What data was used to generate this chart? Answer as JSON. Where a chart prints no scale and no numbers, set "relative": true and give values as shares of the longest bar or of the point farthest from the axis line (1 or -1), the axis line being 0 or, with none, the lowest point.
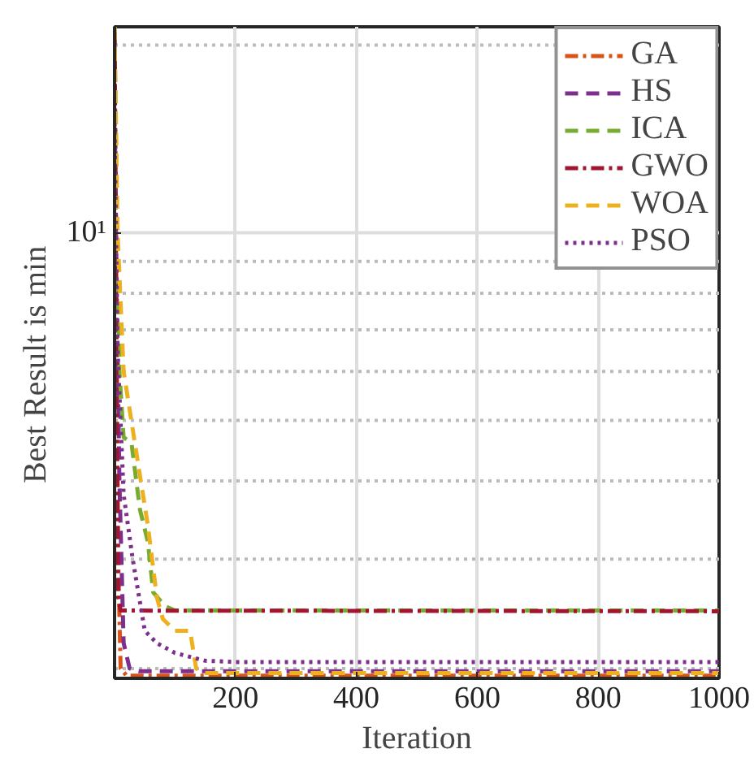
{
  "chart_data": {
    "type": "line",
    "xlabel": "Iteration",
    "ylabel": "Best  Result  is  min",
    "relative": true,
    "annotations": [
      "10¹"
    ],
    "grid": "x",
    "legend": "top right",
    "xlim": [
      0,
      1000
    ],
    "xticks": [
      200,
      400,
      600,
      800,
      1000
    ],
    "ref_lines": [
      {
        "axis": "y",
        "value": 0.684,
        "label": null,
        "color": "#dddddd",
        "line_style": "solid"
      },
      {
        "axis": "y",
        "value": 0.015,
        "label": null,
        "color": "#bbbbbb",
        "line_style": "dotted"
      },
      {
        "axis": "y",
        "value": 0.183,
        "label": null,
        "color": "#bbbbbb",
        "line_style": "dotted"
      },
      {
        "axis": "y",
        "value": 0.303,
        "label": null,
        "color": "#bbbbbb",
        "line_style": "dotted"
      },
      {
        "axis": "y",
        "value": 0.396,
        "label": null,
        "color": "#bbbbbb",
        "line_style": "dotted"
      },
      {
        "axis": "y",
        "value": 0.471,
        "label": null,
        "color": "#bbbbbb",
        "line_style": "dotted"
      },
      {
        "axis": "y",
        "value": 0.535,
        "label": null,
        "color": "#bbbbbb",
        "line_style": "dotted"
      },
      {
        "axis": "y",
        "value": 0.591,
        "label": null,
        "color": "#bbbbbb",
        "line_style": "dotted"
      },
      {
        "axis": "y",
        "value": 0.64,
        "label": null,
        "color": "#bbbbbb",
        "line_style": "dotted"
      },
      {
        "axis": "y",
        "value": 0.972,
        "label": null,
        "color": "#bbbbbb",
        "line_style": "dotted"
      }
    ],
    "series": [
      {
        "name": "GA",
        "color": "#d95319",
        "line_style": "dashdot",
        "x": [
          0,
          3,
          6,
          10,
          20,
          1000
        ],
        "values": [
          0.992,
          0.591,
          0.183,
          0.015,
          0.004,
          0.004
        ]
      },
      {
        "name": "HS",
        "color": "#7e2f8e",
        "line_style": "dashed",
        "x": [
          0,
          3,
          8,
          15,
          25,
          40,
          1000
        ],
        "values": [
          0.972,
          0.64,
          0.303,
          0.054,
          0.015,
          0.011,
          0.011
        ]
      },
      {
        "name": "ICA",
        "color": "#77ac30",
        "line_style": "dashed",
        "x": [
          0,
          3,
          8,
          15,
          28,
          42,
          55,
          64,
          83,
          100,
          1000
        ],
        "values": [
          1.0,
          0.76,
          0.471,
          0.37,
          0.361,
          0.259,
          0.21,
          0.132,
          0.111,
          0.104,
          0.104
        ]
      },
      {
        "name": "GWO",
        "color": "#a2142f",
        "line_style": "dashdot",
        "x": [
          0,
          3,
          6,
          10,
          1000
        ],
        "values": [
          0.992,
          0.471,
          0.124,
          0.104,
          0.103
        ]
      },
      {
        "name": "WOA",
        "color": "#edb120",
        "line_style": "dashed",
        "x": [
          0,
          5,
          15,
          25,
          40,
          55,
          70,
          80,
          100,
          125,
          135,
          150,
          1000
        ],
        "values": [
          1.0,
          0.684,
          0.471,
          0.412,
          0.323,
          0.235,
          0.124,
          0.091,
          0.073,
          0.073,
          0.015,
          0.008,
          0.008
        ]
      },
      {
        "name": "PSO",
        "color": "#7e2f8e",
        "line_style": "dotted",
        "x": [
          0,
          5,
          15,
          30,
          50,
          70,
          100,
          150,
          200,
          1000
        ],
        "values": [
          0.852,
          0.505,
          0.282,
          0.183,
          0.073,
          0.054,
          0.039,
          0.027,
          0.025,
          0.025
        ]
      }
    ]
  }
}
